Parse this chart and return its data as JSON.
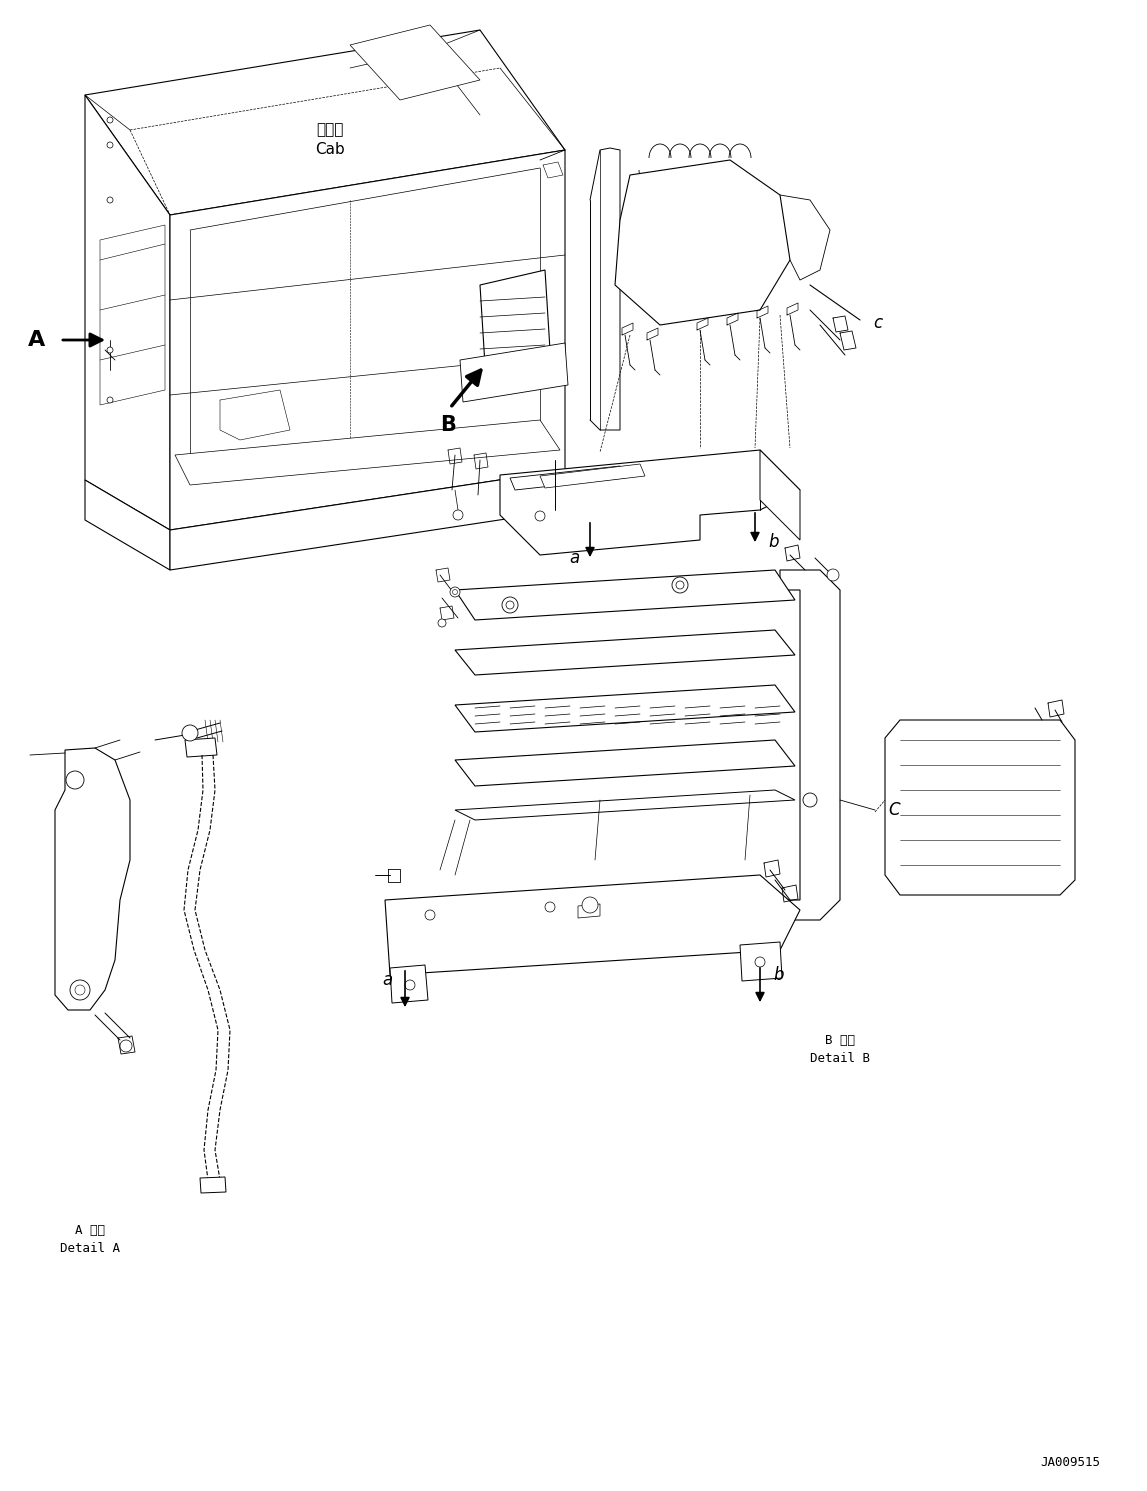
{
  "background_color": "#ffffff",
  "line_color": "#000000",
  "figure_width": 11.47,
  "figure_height": 14.91,
  "dpi": 100,
  "part_code": "JA009515",
  "cab_label_jp": "キャブ",
  "cab_label_en": "Cab",
  "label_A": "A",
  "label_B": "B",
  "label_c": "c",
  "label_a1": "a",
  "label_b1": "b",
  "label_a2": "a",
  "label_b2": "b",
  "label_C": "C",
  "detail_A_jp": "A 詳細",
  "detail_A_en": "Detail A",
  "detail_B_jp": "B 詳細",
  "detail_B_en": "Detail B"
}
